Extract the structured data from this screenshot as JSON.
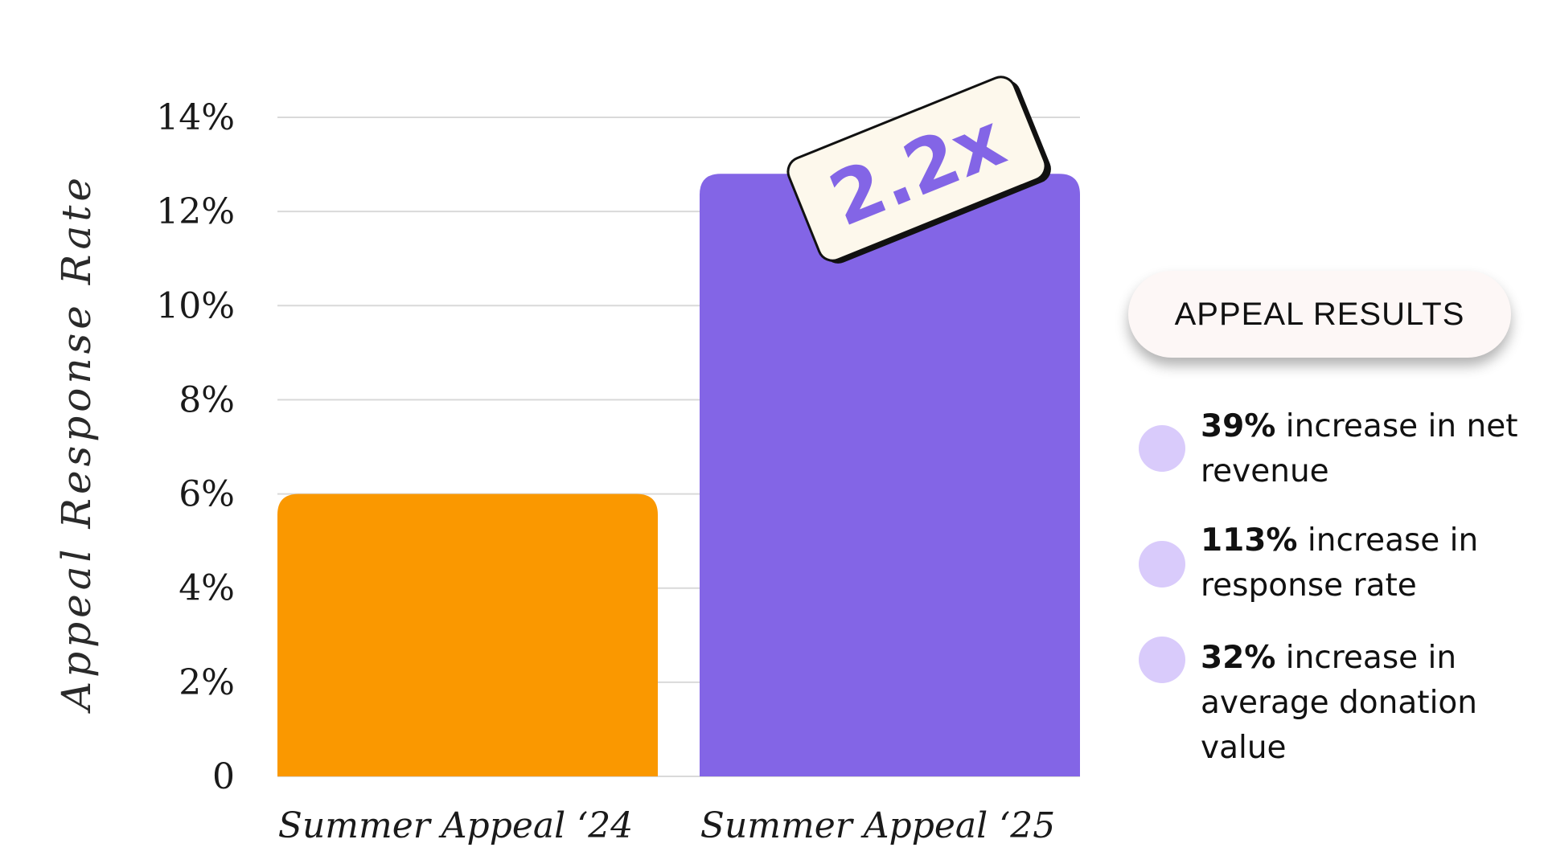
{
  "chart_data": {
    "type": "bar",
    "ylabel": "Appeal Response Rate",
    "xlabel": "",
    "categories": [
      "Summer Appeal ‘24",
      "Summer Appeal ‘25"
    ],
    "values": [
      6.0,
      12.8
    ],
    "ylim": [
      0,
      14
    ],
    "yticks": [
      {
        "value": 0,
        "label": "0"
      },
      {
        "value": 2,
        "label": "2%"
      },
      {
        "value": 4,
        "label": "4%"
      },
      {
        "value": 6,
        "label": "6%"
      },
      {
        "value": 8,
        "label": "8%"
      },
      {
        "value": 10,
        "label": "10%"
      },
      {
        "value": 12,
        "label": "12%"
      },
      {
        "value": 14,
        "label": "14%"
      }
    ],
    "grid": true,
    "colors": [
      "#fa9800",
      "#8365e6"
    ],
    "annotation": "2.2x"
  },
  "results": {
    "title": "APPEAL RESULTS",
    "items": [
      {
        "bold": "39%",
        "text": " increase in net revenue"
      },
      {
        "bold": "113%",
        "text": " increase in response rate"
      },
      {
        "bold": "32%",
        "text": " increase in average donation value"
      }
    ],
    "dot_color": "#d9cbfb"
  }
}
